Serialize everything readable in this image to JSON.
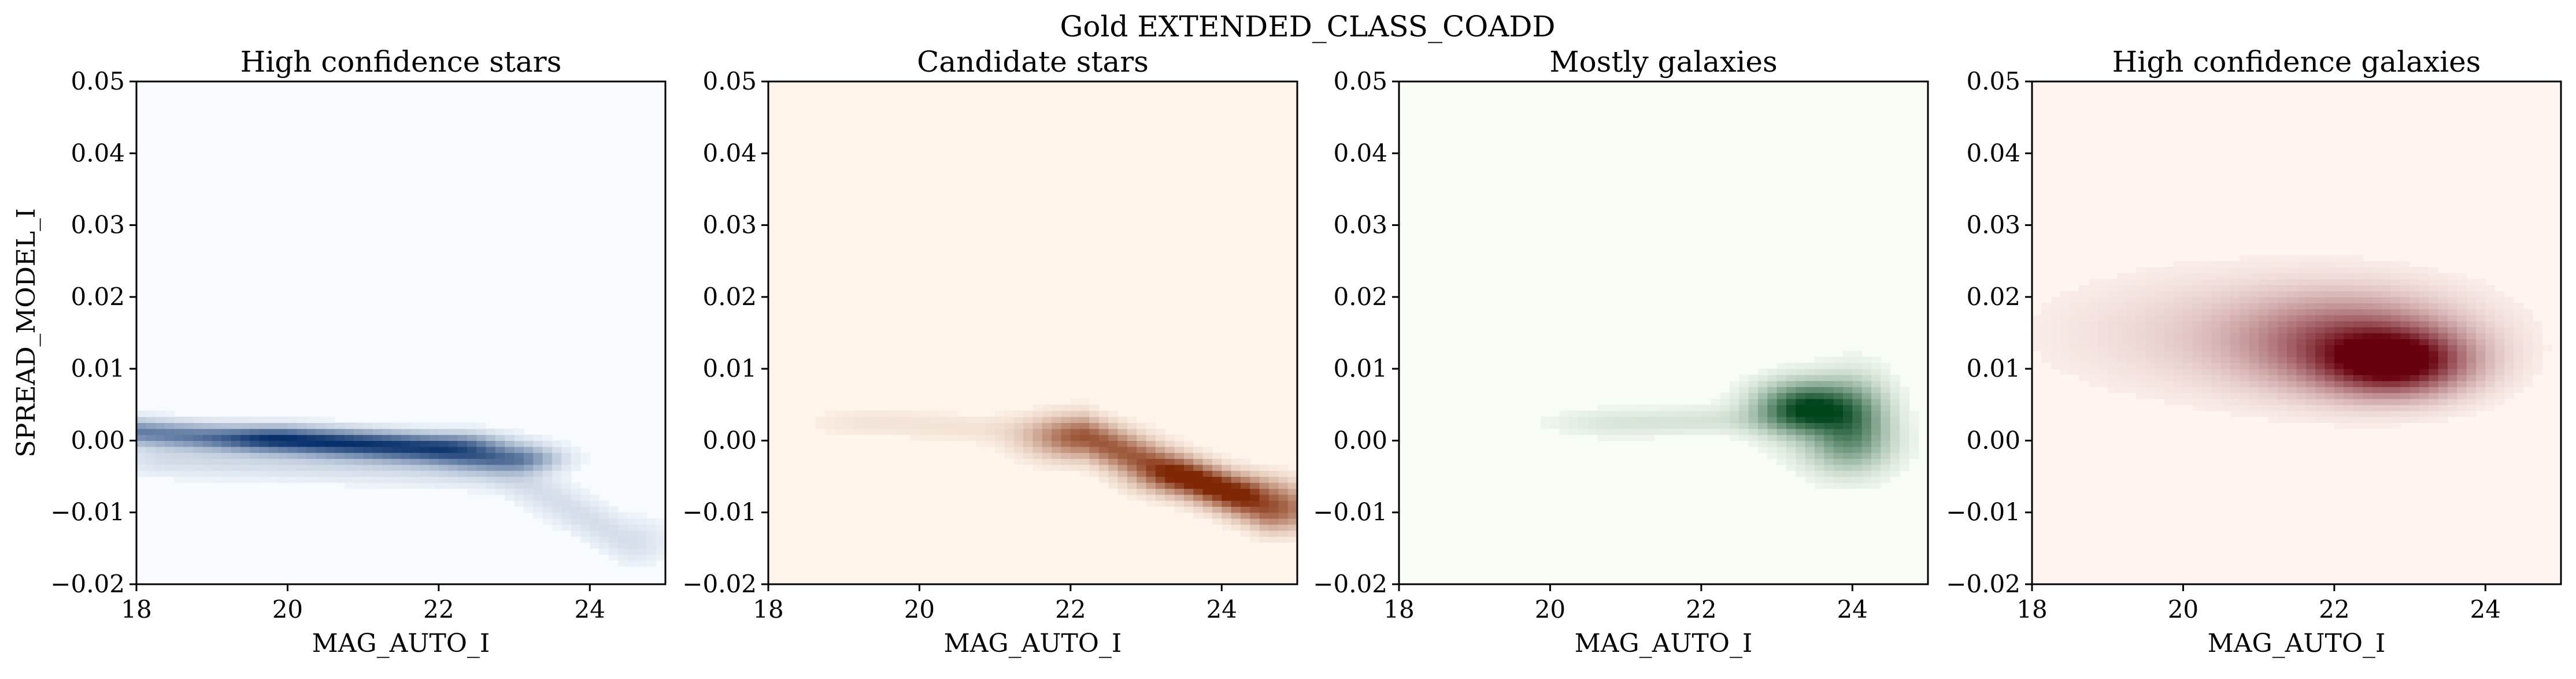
{
  "figure": {
    "suptitle": "Gold EXTENDED_CLASS_COADD"
  },
  "chart_data": [
    {
      "type": "heatmap",
      "title": "High confidence stars",
      "xlabel": "MAG_AUTO_I",
      "ylabel": "SPREAD_MODEL_I",
      "xlim": [
        18,
        25
      ],
      "ylim": [
        -0.02,
        0.05
      ],
      "xticks": [
        18,
        20,
        22,
        24
      ],
      "xtick_labels": [
        "18",
        "20",
        "22",
        "24"
      ],
      "yticks": [
        -0.02,
        -0.01,
        0.0,
        0.01,
        0.02,
        0.03,
        0.04,
        0.05
      ],
      "ytick_labels": [
        "−0.02",
        "−0.01",
        "0.00",
        "0.01",
        "0.02",
        "0.03",
        "0.04",
        "0.05"
      ],
      "colormap": "Blues",
      "colors": {
        "low": "#f7fbff",
        "high": "#08306b"
      },
      "density_blobs": [
        {
          "x": [
            18.0,
            23.0
          ],
          "y": [
            0.0012,
            -0.0025
          ],
          "sx": 0.35,
          "sy": 0.0011,
          "w": 0.55
        },
        {
          "x": [
            20.0,
            22.0
          ],
          "y": [
            0.0005,
            -0.0005
          ],
          "sx": 0.55,
          "sy": 0.001,
          "w": 0.55
        },
        {
          "x": [
            22.5,
            24.5
          ],
          "y": [
            -0.002,
            -0.014
          ],
          "sx": 0.35,
          "sy": 0.002,
          "w": 0.09
        },
        {
          "x": [
            18.5,
            22.5
          ],
          "y": [
            -0.0025,
            -0.004
          ],
          "sx": 0.5,
          "sy": 0.0015,
          "w": 0.1
        }
      ]
    },
    {
      "type": "heatmap",
      "title": "Candidate stars",
      "xlabel": "MAG_AUTO_I",
      "ylabel": "",
      "xlim": [
        18,
        25
      ],
      "ylim": [
        -0.02,
        0.05
      ],
      "xticks": [
        18,
        20,
        22,
        24
      ],
      "xtick_labels": [
        "18",
        "20",
        "22",
        "24"
      ],
      "yticks": [
        -0.02,
        -0.01,
        0.0,
        0.01,
        0.02,
        0.03,
        0.04,
        0.05
      ],
      "ytick_labels": [
        "−0.02",
        "−0.01",
        "0.00",
        "0.01",
        "0.02",
        "0.03",
        "0.04",
        "0.05"
      ],
      "colormap": "Oranges",
      "colors": {
        "low": "#fff5eb",
        "high": "#7f2704"
      },
      "density_blobs": [
        {
          "x": [
            22.2,
            24.6
          ],
          "y": [
            0.0005,
            -0.0095
          ],
          "sx": 0.45,
          "sy": 0.0018,
          "w": 0.7
        },
        {
          "x": [
            23.5,
            24.2
          ],
          "y": [
            -0.005,
            -0.007
          ],
          "sx": 0.4,
          "sy": 0.0015,
          "w": 0.5
        },
        {
          "x": [
            19.5,
            22.0
          ],
          "y": [
            0.0025,
            0.001
          ],
          "sx": 0.6,
          "sy": 0.0012,
          "w": 0.05
        }
      ]
    },
    {
      "type": "heatmap",
      "title": "Mostly galaxies",
      "xlabel": "MAG_AUTO_I",
      "ylabel": "",
      "xlim": [
        18,
        25
      ],
      "ylim": [
        -0.02,
        0.05
      ],
      "xticks": [
        18,
        20,
        22,
        24
      ],
      "xtick_labels": [
        "18",
        "20",
        "22",
        "24"
      ],
      "yticks": [
        -0.02,
        -0.01,
        0.0,
        0.01,
        0.02,
        0.03,
        0.04,
        0.05
      ],
      "ytick_labels": [
        "−0.02",
        "−0.01",
        "0.00",
        "0.01",
        "0.02",
        "0.03",
        "0.04",
        "0.05"
      ],
      "colormap": "Greens",
      "colors": {
        "low": "#f7fcf5",
        "high": "#00441b"
      },
      "density_blobs": [
        {
          "x": [
            23.4,
            23.4
          ],
          "y": [
            0.0045,
            0.0045
          ],
          "sx": 0.4,
          "sy": 0.0022,
          "w": 1.0
        },
        {
          "x": [
            24.0,
            24.0
          ],
          "y": [
            0.003,
            0.003
          ],
          "sx": 0.3,
          "sy": 0.0035,
          "w": 0.45
        },
        {
          "x": [
            23.9,
            23.9
          ],
          "y": [
            -0.0005,
            -0.0005
          ],
          "sx": 0.4,
          "sy": 0.0025,
          "w": 0.25
        },
        {
          "x": [
            21.0,
            22.8
          ],
          "y": [
            0.0025,
            0.003
          ],
          "sx": 0.6,
          "sy": 0.0012,
          "w": 0.08
        }
      ]
    },
    {
      "type": "heatmap",
      "title": "High confidence galaxies",
      "xlabel": "MAG_AUTO_I",
      "ylabel": "",
      "xlim": [
        18,
        25
      ],
      "ylim": [
        -0.02,
        0.05
      ],
      "xticks": [
        18,
        20,
        22,
        24
      ],
      "xtick_labels": [
        "18",
        "20",
        "22",
        "24"
      ],
      "yticks": [
        -0.02,
        -0.01,
        0.0,
        0.01,
        0.02,
        0.03,
        0.04,
        0.05
      ],
      "ytick_labels": [
        "−0.02",
        "−0.01",
        "0.00",
        "0.01",
        "0.02",
        "0.03",
        "0.04",
        "0.05"
      ],
      "colormap": "Reds",
      "colors": {
        "low": "#fff5f0",
        "high": "#67000d"
      },
      "density_blobs": [
        {
          "x": [
            22.8,
            22.8
          ],
          "y": [
            0.011,
            0.011
          ],
          "sx": 0.6,
          "sy": 0.0028,
          "w": 1.0
        },
        {
          "x": [
            22.2,
            22.2
          ],
          "y": [
            0.0135,
            0.0135
          ],
          "sx": 0.9,
          "sy": 0.004,
          "w": 0.55
        },
        {
          "x": [
            21.0,
            21.0
          ],
          "y": [
            0.015,
            0.015
          ],
          "sx": 1.5,
          "sy": 0.005,
          "w": 0.12
        }
      ]
    }
  ]
}
